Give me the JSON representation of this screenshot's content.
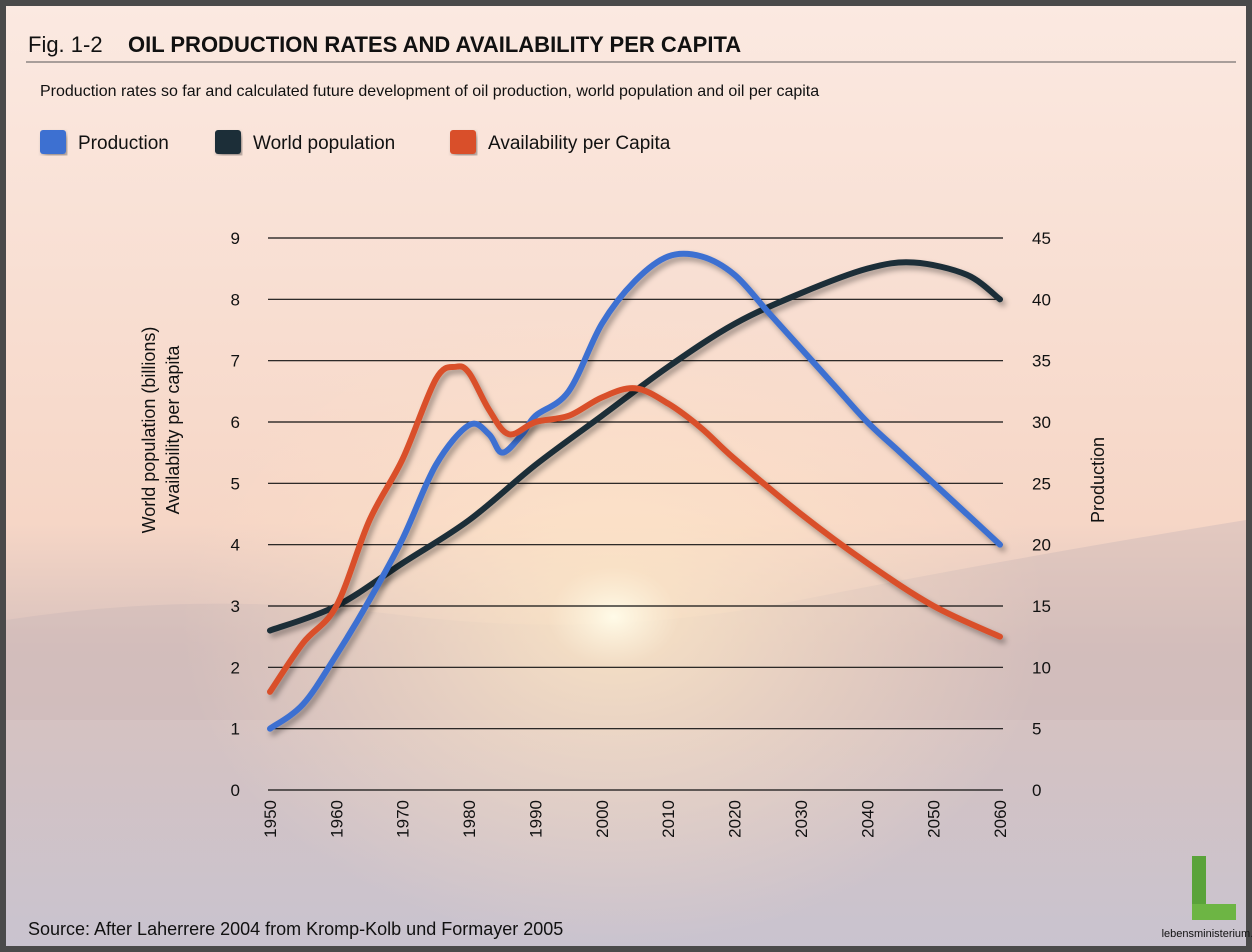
{
  "chart_data": {
    "type": "line",
    "figure_label": "Fig. 1-2",
    "title": "OIL PRODUCTION RATES AND AVAILABILITY PER CAPITA",
    "subtitle": "Production rates so far and calculated future development of oil production, world population and oil per capita",
    "ylabel": [
      "World population (billions)",
      "Availability per capita"
    ],
    "y2label": "Production",
    "source": "Source: After Laherrere 2004 from Kromp-Kolb und Formayer 2005",
    "logo": "lebensministerium.at",
    "xlim": [
      1950,
      2060
    ],
    "xticks": [
      1950,
      1960,
      1970,
      1980,
      1990,
      2000,
      2010,
      2020,
      2030,
      2040,
      2050,
      2060
    ],
    "ylim": [
      0,
      9
    ],
    "yticks": [
      0,
      1,
      2,
      3,
      4,
      5,
      6,
      7,
      8,
      9
    ],
    "y2lim": [
      0,
      45
    ],
    "y2ticks": [
      0,
      5,
      10,
      15,
      20,
      25,
      30,
      35,
      40,
      45
    ],
    "grid": true,
    "series": [
      {
        "name": "Production",
        "color": "#3d6fd1",
        "axis": "y2",
        "x": [
          1950,
          1955,
          1960,
          1965,
          1970,
          1975,
          1980,
          1983,
          1985,
          1988,
          1990,
          1995,
          2000,
          2005,
          2010,
          2015,
          2020,
          2025,
          2030,
          2035,
          2040,
          2045,
          2050,
          2055,
          2060
        ],
        "values": [
          5,
          7,
          11,
          15.5,
          20.5,
          26.5,
          29.75,
          29,
          27.5,
          29,
          30.5,
          32.5,
          38,
          41.5,
          43.5,
          43.5,
          42,
          39,
          36,
          33,
          30,
          27.5,
          25,
          22.5,
          20
        ]
      },
      {
        "name": "World population",
        "color": "#1b2f37",
        "x": [
          1950,
          1960,
          1970,
          1980,
          1990,
          2000,
          2010,
          2020,
          2030,
          2040,
          2047,
          2055,
          2060
        ],
        "values": [
          2.6,
          3.0,
          3.7,
          4.4,
          5.3,
          6.1,
          6.9,
          7.6,
          8.1,
          8.5,
          8.6,
          8.4,
          8.0
        ]
      },
      {
        "name": "Availability per Capita",
        "color": "#d9502a",
        "x": [
          1950,
          1955,
          1960,
          1965,
          1970,
          1975,
          1978,
          1980,
          1983,
          1986,
          1990,
          1995,
          2000,
          2005,
          2010,
          2015,
          2020,
          2030,
          2040,
          2050,
          2060
        ],
        "values": [
          1.6,
          2.4,
          3.0,
          4.4,
          5.4,
          6.7,
          6.9,
          6.8,
          6.2,
          5.8,
          6.0,
          6.1,
          6.4,
          6.55,
          6.3,
          5.9,
          5.4,
          4.5,
          3.7,
          3.0,
          2.5
        ]
      }
    ]
  }
}
